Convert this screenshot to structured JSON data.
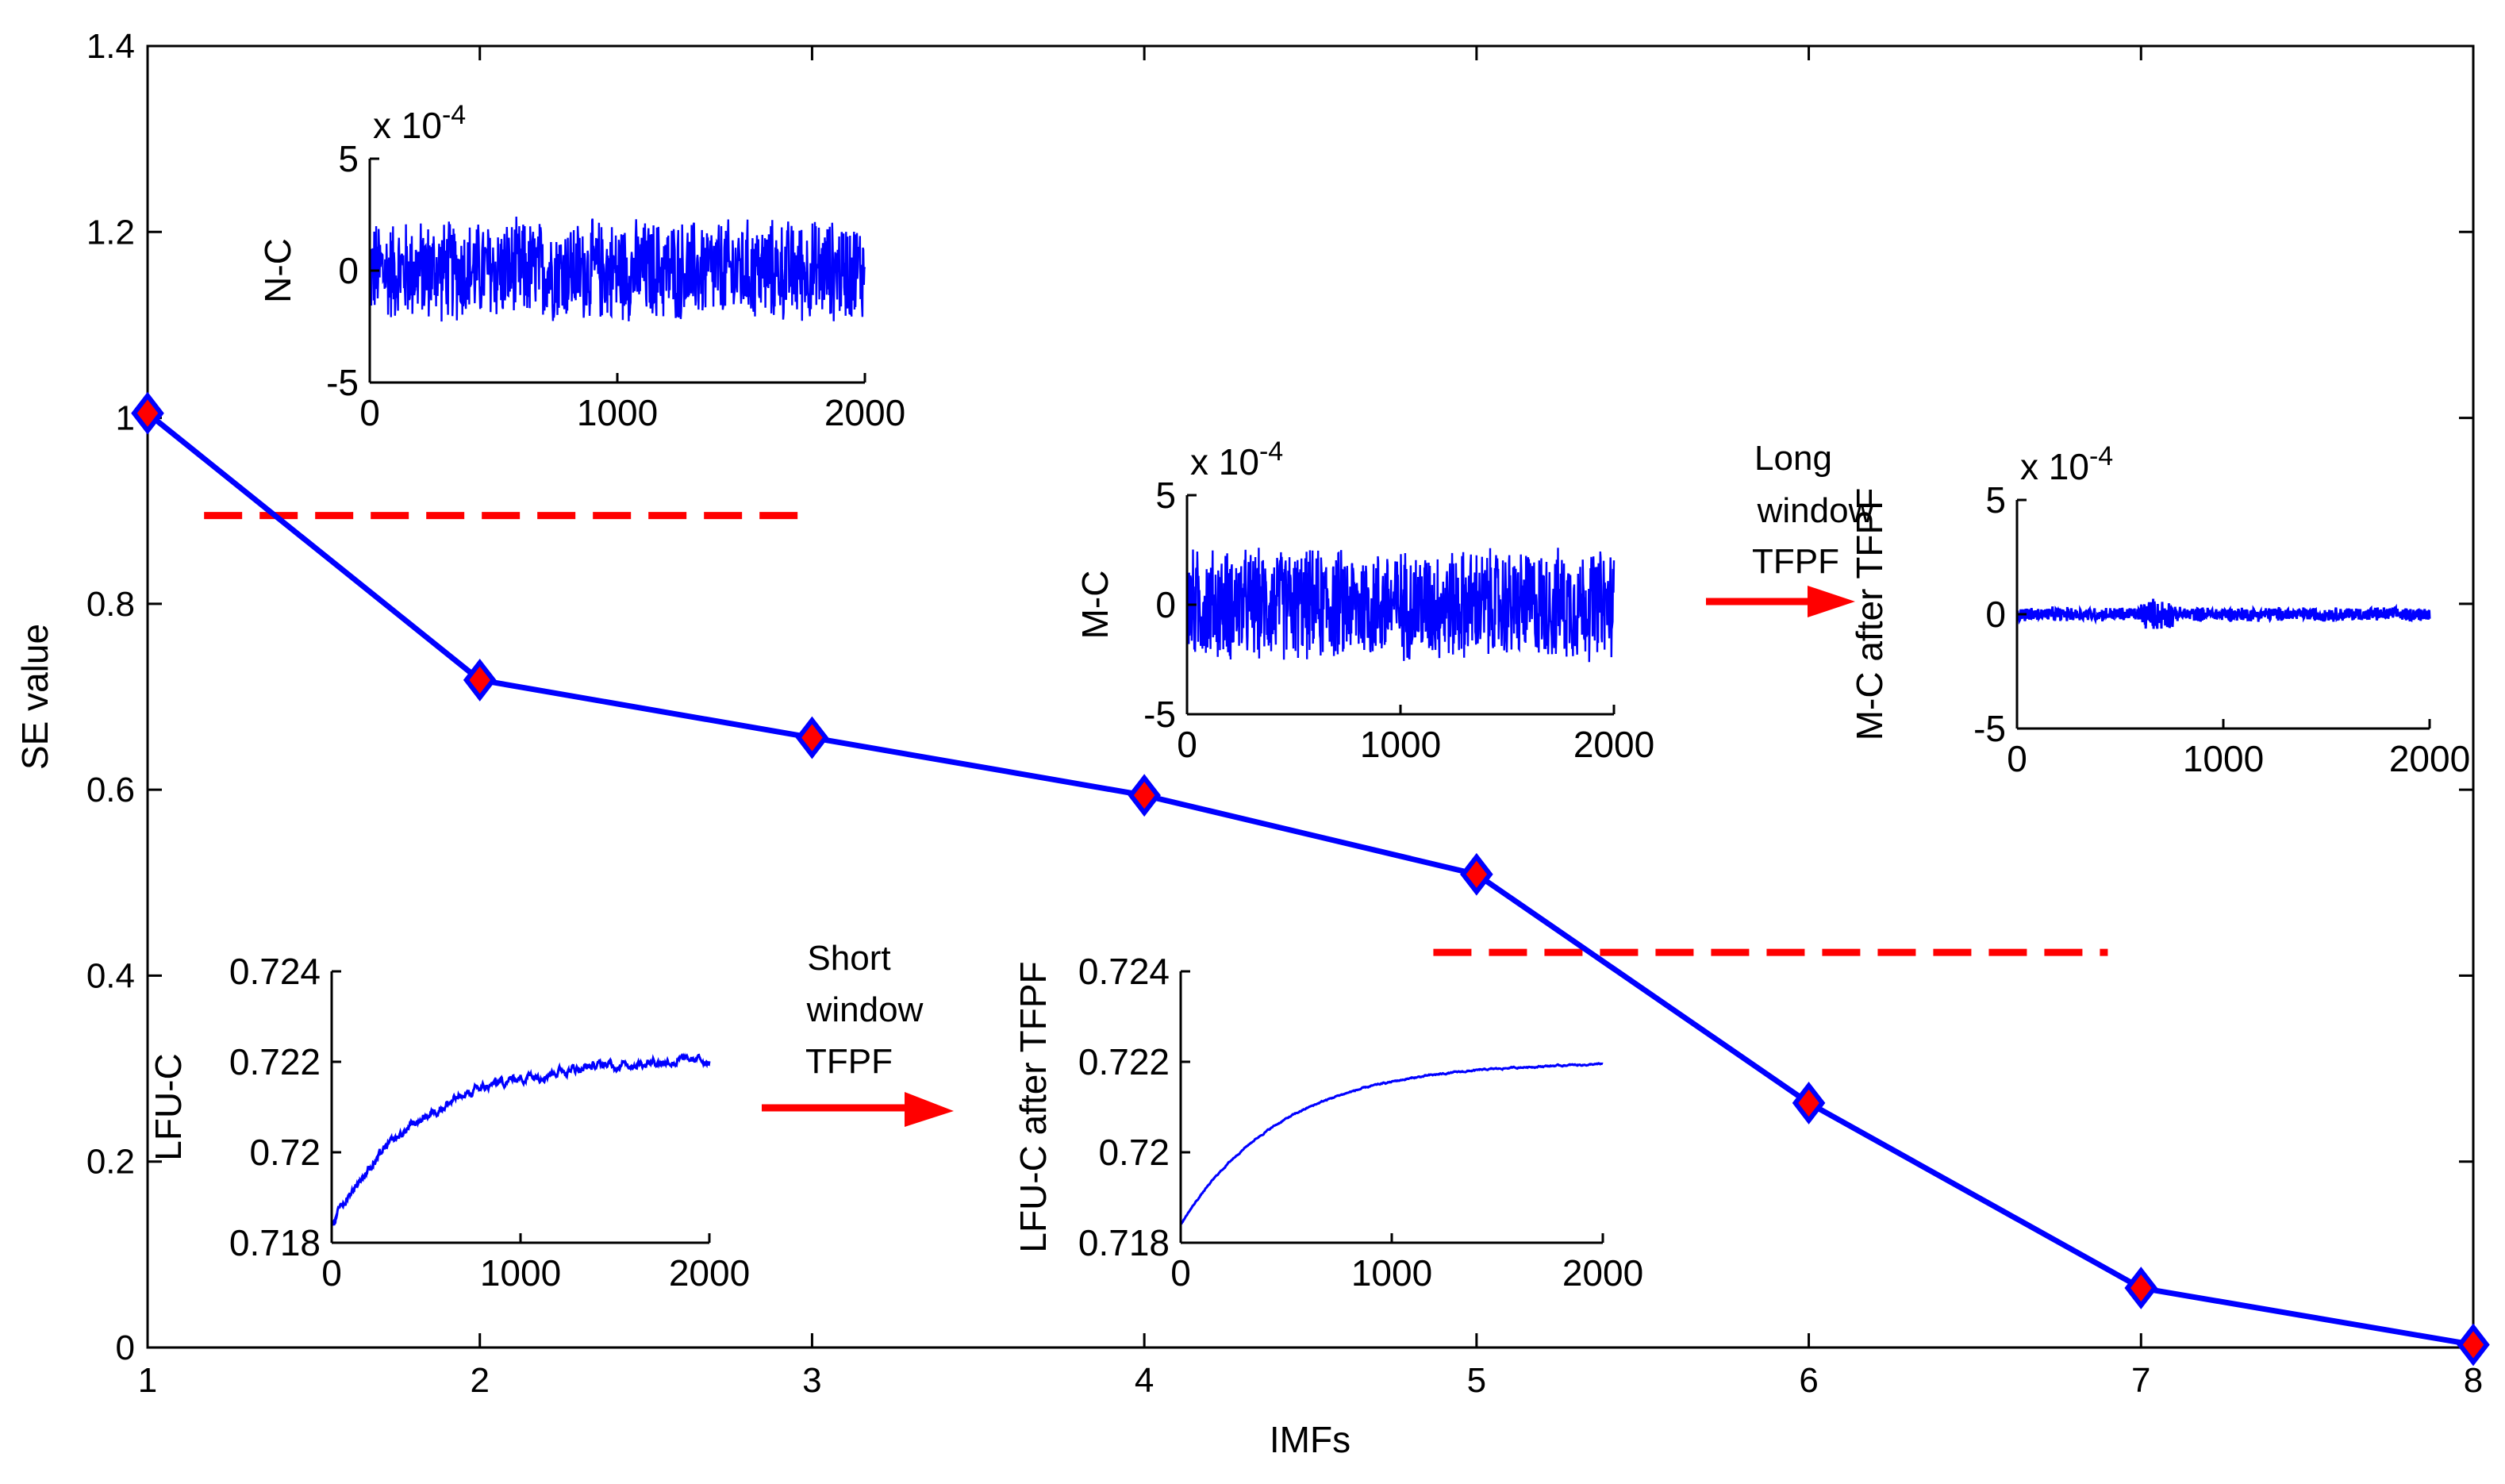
{
  "chart_data": [
    {
      "type": "line",
      "title": "",
      "xlabel": "IMFs",
      "ylabel": "SE value",
      "xlim": [
        1,
        8
      ],
      "ylim": [
        0,
        1.4
      ],
      "x_ticks": [
        "1",
        "2",
        "3",
        "4",
        "5",
        "6",
        "7",
        "8"
      ],
      "y_ticks": [
        "0",
        "0.2",
        "0.4",
        "0.6",
        "0.8",
        "1",
        "1.2",
        "1.4"
      ],
      "grid": false,
      "series": [
        {
          "x": [
            1,
            2,
            3,
            4,
            5,
            6,
            7,
            8
          ],
          "values": [
            1.005,
            0.718,
            0.656,
            0.594,
            0.509,
            0.263,
            0.064,
            0.003
          ],
          "color": "#0000ff",
          "marker_color": "#ff0000"
        }
      ],
      "threshold_lines": [
        {
          "y": 0.895,
          "x_range": [
            1.17,
            3.0
          ],
          "color": "#ff0000",
          "style": "dashed"
        },
        {
          "y": 0.425,
          "x_range": [
            4.87,
            6.9
          ],
          "color": "#ff0000",
          "style": "dashed"
        }
      ]
    },
    {
      "type": "line",
      "ylabel": "N-C",
      "exponent": "x 10",
      "exponent_power": "-4",
      "xlim": [
        0,
        2000
      ],
      "ylim": [
        -5,
        5
      ],
      "x_ticks": [
        "0",
        "1000",
        "2000"
      ],
      "y_ticks": [
        "5",
        "0",
        "-5"
      ],
      "signal": "noise",
      "amplitude": 2.5
    },
    {
      "type": "line",
      "ylabel": "M-C",
      "exponent": "x 10",
      "exponent_power": "-4",
      "xlim": [
        0,
        2000
      ],
      "ylim": [
        -5,
        5
      ],
      "x_ticks": [
        "0",
        "1000",
        "2000"
      ],
      "y_ticks": [
        "5",
        "0",
        "-5"
      ],
      "signal": "noise",
      "amplitude": 2.8
    },
    {
      "type": "line",
      "ylabel": "M-C after TFPF",
      "exponent": "x 10",
      "exponent_power": "-4",
      "xlim": [
        0,
        2000
      ],
      "ylim": [
        -5,
        5
      ],
      "x_ticks": [
        "0",
        "1000",
        "2000"
      ],
      "y_ticks": [
        "5",
        "0",
        "-5"
      ],
      "signal": "small_noise",
      "amplitude": 0.35
    },
    {
      "type": "line",
      "ylabel": "LFU-C",
      "xlim": [
        0,
        2000
      ],
      "ylim": [
        0.718,
        0.724
      ],
      "x_ticks": [
        "0",
        "1000",
        "2000"
      ],
      "y_ticks": [
        "0.724",
        "0.722",
        "0.72",
        "0.718"
      ],
      "signal": "rising",
      "start": 0.7184,
      "end": 0.7221,
      "jitter": 0.00012
    },
    {
      "type": "line",
      "ylabel": "LFU-C after TFPF",
      "xlim": [
        0,
        2000
      ],
      "ylim": [
        0.718,
        0.724
      ],
      "x_ticks": [
        "0",
        "1000",
        "2000"
      ],
      "y_ticks": [
        "0.724",
        "0.722",
        "0.72",
        "0.718"
      ],
      "signal": "rising",
      "start": 0.7184,
      "end": 0.722,
      "jitter": 2e-05
    }
  ],
  "annotations": {
    "long": [
      "Long",
      "window",
      "TFPF"
    ],
    "short": [
      "Short",
      "window",
      "TFPF"
    ],
    "arrow_color": "#ff0000"
  }
}
